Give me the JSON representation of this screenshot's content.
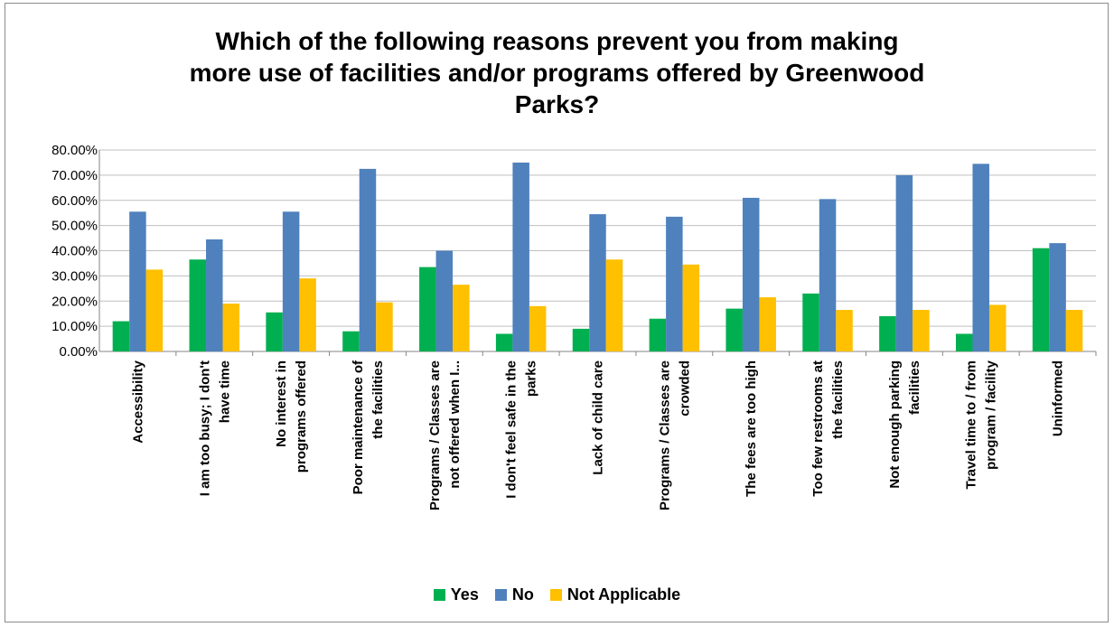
{
  "chart_data": {
    "type": "bar",
    "title_lines": [
      "Which of the following reasons prevent you from making",
      "more use of facilities and/or programs offered by Greenwood",
      "Parks?"
    ],
    "categories": [
      [
        "Accessibility"
      ],
      [
        "I am too busy; I don't",
        "have time"
      ],
      [
        "No interest in",
        "programs offered"
      ],
      [
        "Poor maintenance of",
        "the facilities"
      ],
      [
        "Programs / Classes are",
        "not offered when I..."
      ],
      [
        "I don't feel safe in the",
        "parks"
      ],
      [
        "Lack of child care"
      ],
      [
        "Programs / Classes are",
        "crowded"
      ],
      [
        "The fees are too high"
      ],
      [
        "Too few restrooms at",
        "the facilities"
      ],
      [
        "Not enough parking",
        "facilities"
      ],
      [
        "Travel time to / from",
        "program / facility"
      ],
      [
        "Uninformed"
      ]
    ],
    "series": [
      {
        "name": "Yes",
        "color": "#00b050",
        "values": [
          12.0,
          36.5,
          15.5,
          8.0,
          33.5,
          7.0,
          9.0,
          13.0,
          17.0,
          23.0,
          14.0,
          7.0,
          41.0
        ]
      },
      {
        "name": "No",
        "color": "#4f81bd",
        "values": [
          55.5,
          44.5,
          55.5,
          72.5,
          40.0,
          75.0,
          54.5,
          53.5,
          61.0,
          60.5,
          70.0,
          74.5,
          43.0
        ]
      },
      {
        "name": "Not Applicable",
        "color": "#ffc000",
        "values": [
          32.5,
          19.0,
          29.0,
          19.5,
          26.5,
          18.0,
          36.5,
          34.5,
          21.5,
          16.5,
          16.5,
          18.5,
          16.5
        ]
      }
    ],
    "ylim": [
      0,
      80
    ],
    "yticks": [
      "0.00%",
      "10.00%",
      "20.00%",
      "30.00%",
      "40.00%",
      "50.00%",
      "60.00%",
      "70.00%",
      "80.00%"
    ],
    "grid": true,
    "legend_position": "bottom"
  }
}
